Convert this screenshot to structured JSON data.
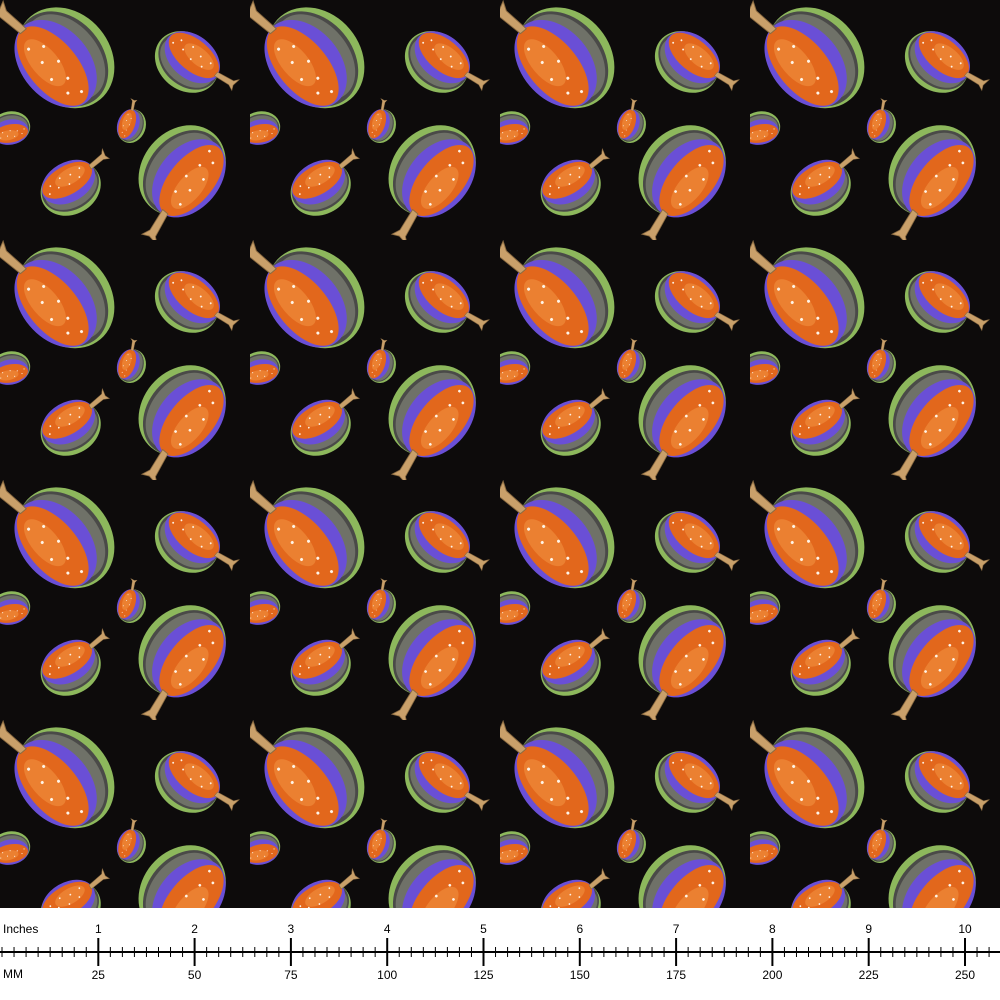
{
  "ruler": {
    "inch_label": "Inches",
    "inch_marks": [
      "1",
      "2",
      "3",
      "4",
      "5",
      "6",
      "7",
      "8",
      "9",
      "10"
    ],
    "mm_label": "MM",
    "mm_marks": [
      "25",
      "50",
      "75",
      "100",
      "125",
      "150",
      "175",
      "200",
      "225",
      "250"
    ]
  }
}
